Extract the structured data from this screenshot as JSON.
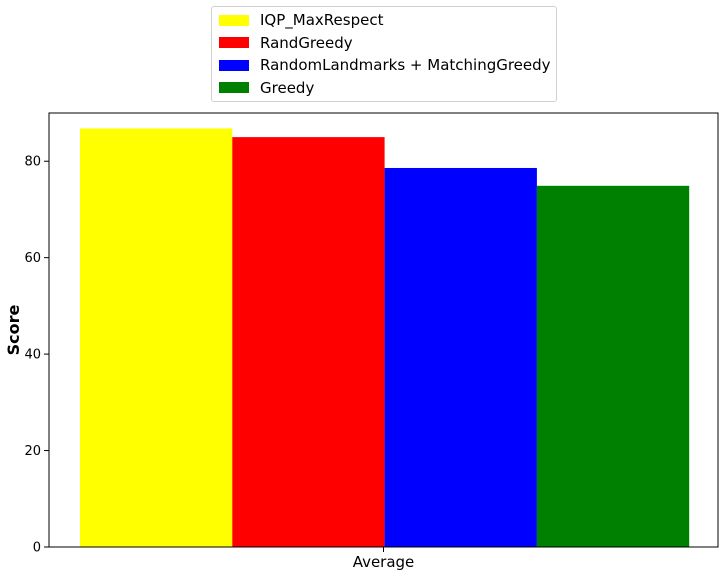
{
  "chart_data": {
    "type": "bar",
    "categories": [
      "Average"
    ],
    "series": [
      {
        "name": "IQP_MaxRespect",
        "values": [
          86.8
        ],
        "color": "#ffff00"
      },
      {
        "name": "RandGreedy",
        "values": [
          85.0
        ],
        "color": "#ff0000"
      },
      {
        "name": "RandomLandmarks + MatchingGreedy",
        "values": [
          78.6
        ],
        "color": "#0000ff"
      },
      {
        "name": "Greedy",
        "values": [
          74.9
        ],
        "color": "#008000"
      }
    ],
    "title": "",
    "xlabel": "",
    "ylabel": "Score",
    "ylim": [
      0,
      90
    ],
    "yticks": [
      0,
      20,
      40,
      60,
      80
    ],
    "grid": false,
    "legend_position": "top-center"
  }
}
